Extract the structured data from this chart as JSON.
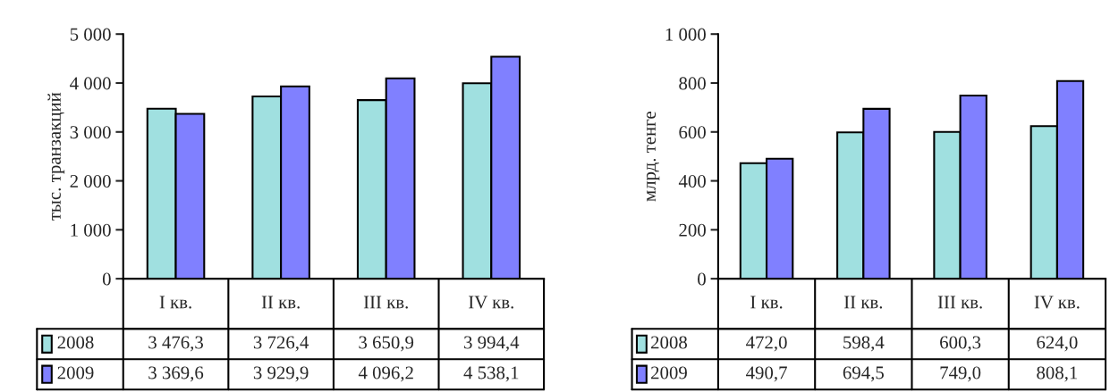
{
  "chart_data": [
    {
      "type": "bar",
      "ylabel": "тыс. транзакций",
      "categories": [
        "I кв.",
        "II кв.",
        "III кв.",
        "IV кв."
      ],
      "series": [
        {
          "name": "2008",
          "color": "#a0e0e0",
          "values": [
            3476.3,
            3726.4,
            3650.9,
            3994.4
          ],
          "value_labels": [
            "3 476,3",
            "3 726,4",
            "3 650,9",
            "3 994,4"
          ]
        },
        {
          "name": "2009",
          "color": "#8080ff",
          "values": [
            3369.6,
            3929.9,
            4096.2,
            4538.1
          ],
          "value_labels": [
            "3 369,6",
            "3 929,9",
            "4 096,2",
            "4 538,1"
          ]
        }
      ],
      "legend": "bottom left",
      "ylim": [
        0,
        5000
      ],
      "yticks": [
        0,
        {
          "value": 1000,
          "label": "1 000"
        },
        {
          "value": 2000,
          "label": "2 000"
        },
        {
          "value": 3000,
          "label": "3 000"
        },
        {
          "value": 4000,
          "label": "4 000"
        },
        {
          "value": 5000,
          "label": "5 000"
        }
      ],
      "grid": false
    },
    {
      "type": "bar",
      "ylabel": "млрд. тенге",
      "categories": [
        "I кв.",
        "II кв.",
        "III кв.",
        "IV кв."
      ],
      "series": [
        {
          "name": "2008",
          "color": "#a0e0e0",
          "values": [
            472.0,
            598.4,
            600.3,
            624.0
          ],
          "value_labels": [
            "472,0",
            "598,4",
            "600,3",
            "624,0"
          ]
        },
        {
          "name": "2009",
          "color": "#8080ff",
          "values": [
            490.7,
            694.5,
            749.0,
            808.1
          ],
          "value_labels": [
            "490,7",
            "694,5",
            "749,0",
            "808,1"
          ]
        }
      ],
      "legend": "bottom left",
      "ylim": [
        0,
        1000
      ],
      "yticks": [
        0,
        200,
        400,
        600,
        800,
        {
          "value": 1000,
          "label": "1 000"
        }
      ],
      "grid": false
    }
  ]
}
